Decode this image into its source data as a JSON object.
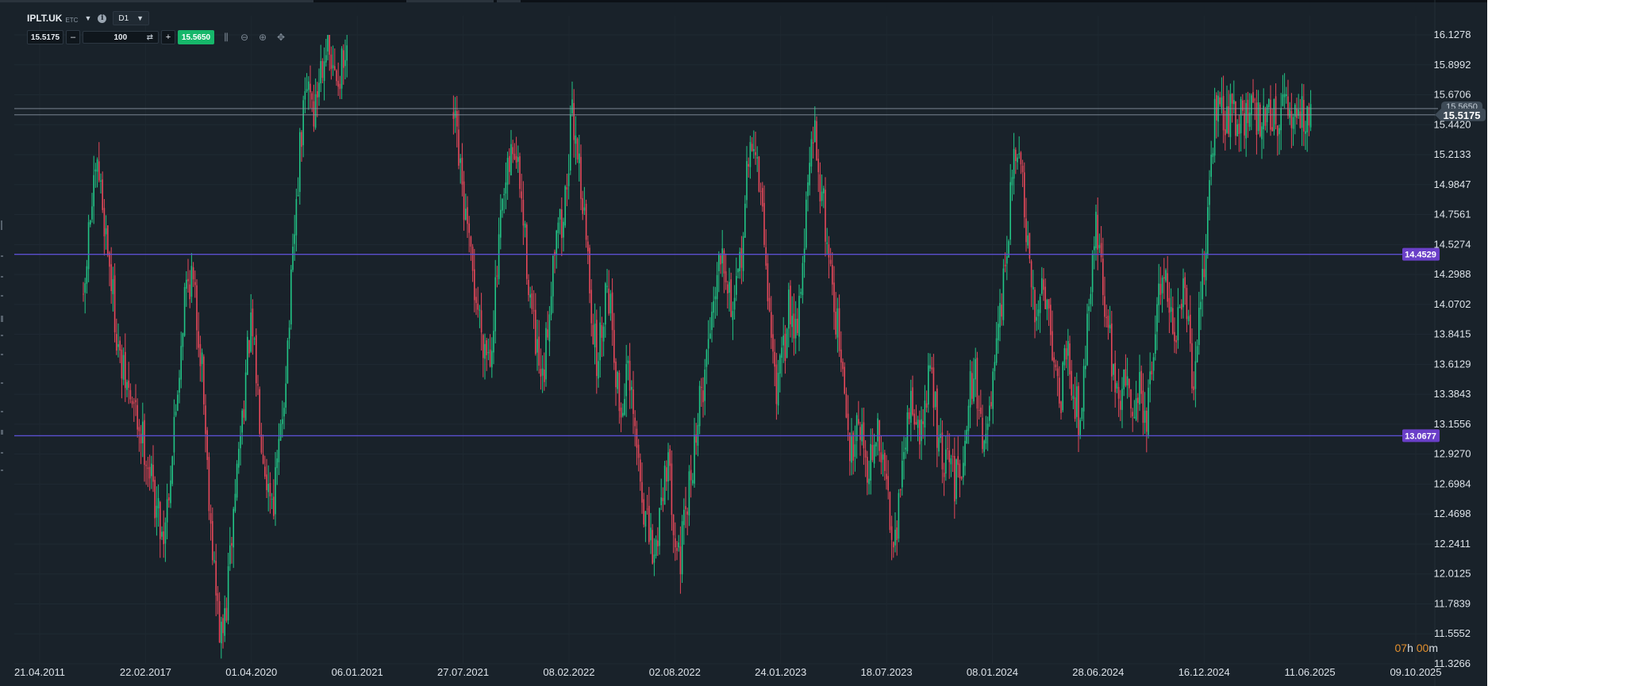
{
  "toolbar": {
    "symbol": "IPLT.UK",
    "symbol_tag": "ETC",
    "timeframe": "D1",
    "sell_price": "15.5175",
    "quantity": "100",
    "buy_price": "15.5650",
    "icons": [
      "chevron-down-icon",
      "info-icon",
      "minus-icon",
      "swap-icon",
      "plus-icon",
      "candles-icon",
      "zoom-out-icon",
      "zoom-in-icon",
      "crosshair-icon"
    ]
  },
  "countdown": {
    "hours": "07",
    "hours_unit": "h",
    "minutes": "00",
    "minutes_unit": "m"
  },
  "colors": {
    "background": "#19222a",
    "bull": "#22c486",
    "bear": "#e5485a",
    "level_line": "#5b4fcf",
    "level_badge": "#6a3fc8",
    "price_badge": "#3e4b57",
    "axis_text": "#dde3e9",
    "countdown": "#e3902e"
  },
  "chart_data": {
    "type": "candlestick",
    "ylim": [
      11.3266,
      16.1278
    ],
    "y_ticks": [
      "16.1278",
      "15.8992",
      "15.6706",
      "15.4420",
      "15.2133",
      "14.9847",
      "14.7561",
      "14.5274",
      "14.2988",
      "14.0702",
      "13.8415",
      "13.6129",
      "13.3843",
      "13.1556",
      "12.9270",
      "12.6984",
      "12.4698",
      "12.2411",
      "12.0125",
      "11.7839",
      "11.5552",
      "11.3266"
    ],
    "x_ticks": [
      "21.04.2011",
      "22.02.2017",
      "01.04.2020",
      "06.01.2021",
      "27.07.2021",
      "08.02.2022",
      "02.08.2022",
      "24.01.2023",
      "18.07.2023",
      "08.01.2024",
      "28.06.2024",
      "16.12.2024",
      "11.06.2025",
      "09.10.2025"
    ],
    "horizontal_levels": [
      {
        "value": 14.4529,
        "label": "14.4529",
        "kind": "level"
      },
      {
        "value": 13.0677,
        "label": "13.0677",
        "kind": "level"
      },
      {
        "value": 15.5175,
        "label": "15.5175",
        "kind": "bid"
      },
      {
        "value": 15.565,
        "label": "15.5650",
        "kind": "ask"
      }
    ],
    "close_path": [
      [
        0.0,
        14.0
      ],
      [
        0.005,
        14.7
      ],
      [
        0.012,
        15.1
      ],
      [
        0.02,
        14.5
      ],
      [
        0.03,
        13.6
      ],
      [
        0.04,
        13.3
      ],
      [
        0.05,
        13.0
      ],
      [
        0.058,
        12.6
      ],
      [
        0.065,
        12.3
      ],
      [
        0.072,
        12.9
      ],
      [
        0.078,
        13.6
      ],
      [
        0.083,
        14.2
      ],
      [
        0.088,
        14.3
      ],
      [
        0.092,
        14.0
      ],
      [
        0.097,
        13.6
      ],
      [
        0.1,
        13.0
      ],
      [
        0.104,
        12.4
      ],
      [
        0.108,
        11.85
      ],
      [
        0.112,
        11.5
      ],
      [
        0.116,
        11.7
      ],
      [
        0.12,
        12.2
      ],
      [
        0.124,
        12.7
      ],
      [
        0.13,
        13.3
      ],
      [
        0.136,
        13.9
      ],
      [
        0.14,
        13.6
      ],
      [
        0.145,
        13.1
      ],
      [
        0.15,
        12.7
      ],
      [
        0.155,
        12.6
      ],
      [
        0.16,
        13.0
      ],
      [
        0.165,
        13.6
      ],
      [
        0.168,
        14.0
      ],
      [
        0.172,
        14.6
      ],
      [
        0.176,
        15.2
      ],
      [
        0.18,
        15.6
      ],
      [
        0.184,
        15.8
      ],
      [
        0.188,
        15.5
      ],
      [
        0.193,
        15.9
      ],
      [
        0.198,
        16.1
      ],
      [
        0.203,
        15.8
      ],
      [
        0.215,
        15.9
      ],
      [
        0.3,
        15.6
      ],
      [
        0.305,
        15.2
      ],
      [
        0.31,
        14.8
      ],
      [
        0.315,
        14.4
      ],
      [
        0.32,
        14.1
      ],
      [
        0.326,
        13.8
      ],
      [
        0.331,
        13.7
      ],
      [
        0.336,
        14.2
      ],
      [
        0.34,
        14.7
      ],
      [
        0.345,
        15.0
      ],
      [
        0.35,
        15.3
      ],
      [
        0.355,
        15.0
      ],
      [
        0.36,
        14.5
      ],
      [
        0.365,
        14.0
      ],
      [
        0.37,
        13.6
      ],
      [
        0.374,
        13.4
      ],
      [
        0.378,
        13.9
      ],
      [
        0.382,
        14.4
      ],
      [
        0.386,
        14.8
      ],
      [
        0.39,
        14.6
      ],
      [
        0.394,
        15.1
      ],
      [
        0.398,
        15.5
      ],
      [
        0.402,
        15.3
      ],
      [
        0.406,
        14.9
      ],
      [
        0.41,
        14.5
      ],
      [
        0.414,
        14.0
      ],
      [
        0.418,
        13.6
      ],
      [
        0.422,
        13.9
      ],
      [
        0.426,
        14.3
      ],
      [
        0.43,
        14.0
      ],
      [
        0.434,
        13.5
      ],
      [
        0.438,
        13.2
      ],
      [
        0.442,
        13.6
      ],
      [
        0.446,
        13.3
      ],
      [
        0.45,
        13.0
      ],
      [
        0.455,
        12.6
      ],
      [
        0.46,
        12.3
      ],
      [
        0.465,
        12.1
      ],
      [
        0.47,
        12.6
      ],
      [
        0.475,
        12.9
      ],
      [
        0.48,
        12.5
      ],
      [
        0.485,
        12.1
      ],
      [
        0.49,
        12.4
      ],
      [
        0.495,
        12.8
      ],
      [
        0.5,
        13.2
      ],
      [
        0.505,
        13.5
      ],
      [
        0.51,
        13.9
      ],
      [
        0.515,
        14.3
      ],
      [
        0.52,
        14.6
      ],
      [
        0.525,
        14.2
      ],
      [
        0.53,
        14.0
      ],
      [
        0.535,
        14.4
      ],
      [
        0.54,
        15.0
      ],
      [
        0.545,
        15.4
      ],
      [
        0.55,
        15.0
      ],
      [
        0.555,
        14.5
      ],
      [
        0.56,
        13.8
      ],
      [
        0.565,
        13.4
      ],
      [
        0.57,
        13.7
      ],
      [
        0.575,
        14.1
      ],
      [
        0.58,
        13.9
      ],
      [
        0.585,
        14.3
      ],
      [
        0.59,
        15.0
      ],
      [
        0.595,
        15.4
      ],
      [
        0.6,
        15.0
      ],
      [
        0.605,
        14.6
      ],
      [
        0.61,
        14.2
      ],
      [
        0.615,
        13.8
      ],
      [
        0.62,
        13.3
      ],
      [
        0.625,
        12.9
      ],
      [
        0.63,
        13.3
      ],
      [
        0.635,
        13.0
      ],
      [
        0.64,
        12.8
      ],
      [
        0.645,
        13.1
      ],
      [
        0.65,
        12.9
      ],
      [
        0.655,
        12.6
      ],
      [
        0.66,
        12.3
      ],
      [
        0.665,
        12.6
      ],
      [
        0.67,
        13.1
      ],
      [
        0.675,
        13.4
      ],
      [
        0.68,
        13.0
      ],
      [
        0.685,
        13.3
      ],
      [
        0.69,
        13.6
      ],
      [
        0.695,
        13.1
      ],
      [
        0.7,
        12.8
      ],
      [
        0.705,
        12.9
      ],
      [
        0.71,
        12.7
      ],
      [
        0.715,
        12.9
      ],
      [
        0.72,
        13.3
      ],
      [
        0.725,
        13.6
      ],
      [
        0.73,
        13.2
      ],
      [
        0.735,
        13.0
      ],
      [
        0.74,
        13.4
      ],
      [
        0.745,
        13.8
      ],
      [
        0.75,
        14.3
      ],
      [
        0.755,
        14.9
      ],
      [
        0.76,
        15.3
      ],
      [
        0.765,
        14.9
      ],
      [
        0.77,
        14.3
      ],
      [
        0.775,
        13.9
      ],
      [
        0.78,
        14.3
      ],
      [
        0.785,
        14.1
      ],
      [
        0.79,
        13.7
      ],
      [
        0.795,
        13.3
      ],
      [
        0.8,
        13.8
      ],
      [
        0.805,
        13.5
      ],
      [
        0.81,
        13.2
      ],
      [
        0.815,
        13.6
      ],
      [
        0.82,
        14.3
      ],
      [
        0.825,
        14.7
      ],
      [
        0.83,
        14.2
      ],
      [
        0.835,
        13.8
      ],
      [
        0.84,
        13.5
      ],
      [
        0.845,
        13.3
      ],
      [
        0.85,
        13.6
      ],
      [
        0.855,
        13.2
      ],
      [
        0.86,
        13.5
      ],
      [
        0.865,
        13.1
      ],
      [
        0.87,
        13.6
      ],
      [
        0.875,
        14.1
      ],
      [
        0.88,
        14.4
      ],
      [
        0.885,
        14.0
      ],
      [
        0.89,
        13.8
      ],
      [
        0.895,
        14.2
      ],
      [
        0.9,
        13.8
      ],
      [
        0.903,
        13.3
      ],
      [
        0.906,
        13.8
      ],
      [
        0.91,
        14.1
      ],
      [
        0.913,
        14.4
      ],
      [
        0.916,
        15.0
      ],
      [
        0.919,
        15.3
      ],
      [
        0.921,
        15.55
      ],
      [
        0.923,
        15.52
      ]
    ]
  }
}
